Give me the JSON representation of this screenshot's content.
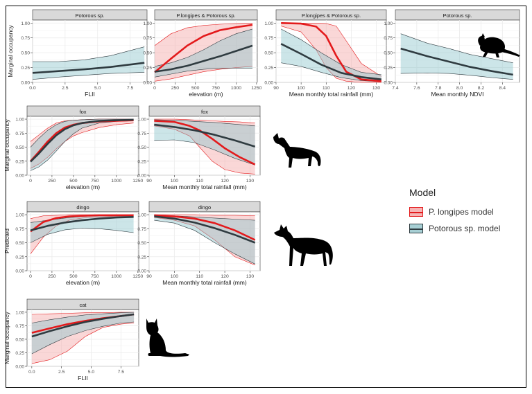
{
  "colors": {
    "p_longipes": "#e31a1c",
    "p_longipes_fill": "#f4a6a6",
    "potorous": "#2f3b40",
    "potorous_fill": "#8fc6cc",
    "strip_bg": "#d9d9d9",
    "panel_bg": "#ffffff",
    "grid": "#ebebeb"
  },
  "legend": {
    "title": "Model",
    "items": [
      {
        "label": "P. longipes model",
        "color": "#e31a1c"
      },
      {
        "label": "Potorous sp. model",
        "color": "#2f3b40"
      }
    ]
  },
  "row_ylabels": [
    "Marginal occupancy",
    "Marginal occupancy",
    "Predicted",
    "Marginal occupancy"
  ],
  "silhouettes": [
    "potoroo-icon",
    "fox-icon",
    "dingo-icon",
    "cat-icon"
  ],
  "chart_data": [
    {
      "type": "line",
      "strip": "Potorous sp.",
      "xlabel": "FLII",
      "xlim": [
        0,
        8.8
      ],
      "ylim": [
        0,
        1.05
      ],
      "xticks": [
        0,
        2.5,
        5,
        7.5
      ],
      "xtick_labels": [
        "0.0",
        "2.5",
        "5.0",
        "7.5"
      ],
      "yticks": [
        0,
        0.25,
        0.5,
        0.75,
        1
      ],
      "ytick_labels": [
        "0.00",
        "0.25",
        "0.50",
        "0.75",
        "1.00"
      ],
      "series": [
        {
          "model": "potorous",
          "x": [
            0,
            2,
            4,
            6,
            8.6
          ],
          "y": [
            0.16,
            0.19,
            0.22,
            0.26,
            0.33
          ],
          "lo": [
            0.05,
            0.09,
            0.12,
            0.15,
            0.17
          ],
          "hi": [
            0.35,
            0.35,
            0.38,
            0.45,
            0.6
          ]
        }
      ]
    },
    {
      "type": "line",
      "strip": "P.longipes & Potorous sp.",
      "xlabel": "elevation (m)",
      "xlim": [
        0,
        1260
      ],
      "ylim": [
        0,
        1.05
      ],
      "xticks": [
        0,
        250,
        500,
        750,
        1000,
        1250
      ],
      "xtick_labels": [
        "0",
        "250",
        "500",
        "750",
        "1000",
        "1250"
      ],
      "yticks": [
        0,
        0.25,
        0.5,
        0.75,
        1
      ],
      "ytick_labels": [
        "0.00",
        "0.25",
        "0.50",
        "0.75",
        "1.00"
      ],
      "series": [
        {
          "model": "p_longipes",
          "x": [
            0,
            200,
            400,
            600,
            800,
            1000,
            1200
          ],
          "y": [
            0.17,
            0.4,
            0.62,
            0.78,
            0.88,
            0.93,
            0.97
          ],
          "lo": [
            0.02,
            0.06,
            0.12,
            0.18,
            0.22,
            0.25,
            0.27
          ],
          "hi": [
            0.62,
            0.82,
            0.92,
            0.96,
            0.98,
            0.99,
            1.0
          ]
        },
        {
          "model": "potorous",
          "x": [
            0,
            200,
            400,
            600,
            800,
            1000,
            1200
          ],
          "y": [
            0.18,
            0.22,
            0.28,
            0.36,
            0.44,
            0.53,
            0.62
          ],
          "lo": [
            0.09,
            0.14,
            0.19,
            0.22,
            0.24,
            0.24,
            0.24
          ],
          "hi": [
            0.27,
            0.33,
            0.42,
            0.55,
            0.7,
            0.82,
            0.9
          ]
        }
      ]
    },
    {
      "type": "line",
      "strip": "P.longipes & Potorous sp.",
      "xlabel": "Mean monthly total rainfall (mm)",
      "xlim": [
        90,
        134
      ],
      "ylim": [
        0,
        1.05
      ],
      "xticks": [
        90,
        100,
        110,
        120,
        130
      ],
      "xtick_labels": [
        "90",
        "100",
        "110",
        "120",
        "130"
      ],
      "yticks": [
        0,
        0.25,
        0.5,
        0.75,
        1
      ],
      "ytick_labels": [
        "0.00",
        "0.25",
        "0.50",
        "0.75",
        "1.00"
      ],
      "series": [
        {
          "model": "p_longipes",
          "x": [
            92,
            100,
            106,
            110,
            114,
            118,
            124,
            132
          ],
          "y": [
            1.0,
            0.99,
            0.94,
            0.78,
            0.45,
            0.18,
            0.05,
            0.02
          ],
          "lo": [
            0.95,
            0.85,
            0.55,
            0.25,
            0.07,
            0.02,
            0.0,
            0.0
          ],
          "hi": [
            1.0,
            1.0,
            1.0,
            0.99,
            0.95,
            0.7,
            0.32,
            0.1
          ]
        },
        {
          "model": "potorous",
          "x": [
            92,
            100,
            108,
            116,
            124,
            132
          ],
          "y": [
            0.65,
            0.48,
            0.3,
            0.16,
            0.09,
            0.05
          ],
          "lo": [
            0.33,
            0.27,
            0.17,
            0.08,
            0.03,
            0.01
          ],
          "hi": [
            0.9,
            0.72,
            0.5,
            0.3,
            0.17,
            0.13
          ]
        }
      ]
    },
    {
      "type": "line",
      "strip": "Potorous sp.",
      "xlabel": "Mean monthly NDVI",
      "xlim": [
        7.4,
        8.56
      ],
      "ylim": [
        0,
        1.05
      ],
      "xticks": [
        7.4,
        7.6,
        7.8,
        8.0,
        8.2,
        8.4
      ],
      "xtick_labels": [
        "7.4",
        "7.6",
        "7.8",
        "8.0",
        "8.2",
        "8.4"
      ],
      "yticks": [
        0,
        0.25,
        0.5,
        0.75,
        1
      ],
      "ytick_labels": [
        "0.00",
        "0.25",
        "0.50",
        "0.75",
        "1.00"
      ],
      "series": [
        {
          "model": "potorous",
          "x": [
            7.45,
            7.7,
            7.9,
            8.1,
            8.3,
            8.5
          ],
          "y": [
            0.57,
            0.44,
            0.35,
            0.26,
            0.19,
            0.13
          ],
          "lo": [
            0.15,
            0.16,
            0.15,
            0.12,
            0.08,
            0.05
          ],
          "hi": [
            0.82,
            0.66,
            0.57,
            0.47,
            0.4,
            0.33
          ]
        }
      ]
    },
    {
      "type": "line",
      "strip": "fox",
      "xlabel": "elevation (m)",
      "xlim": [
        -40,
        1260
      ],
      "ylim": [
        0,
        1.05
      ],
      "xticks": [
        0,
        250,
        500,
        750,
        1000,
        1250
      ],
      "xtick_labels": [
        "0",
        "250",
        "500",
        "750",
        "1000",
        "1250"
      ],
      "yticks": [
        0,
        0.25,
        0.5,
        0.75,
        1
      ],
      "ytick_labels": [
        "0.00",
        "0.25",
        "0.50",
        "0.75",
        "1.00"
      ],
      "series": [
        {
          "model": "p_longipes",
          "x": [
            0,
            100,
            200,
            300,
            400,
            500,
            600,
            800,
            1000,
            1200
          ],
          "y": [
            0.25,
            0.42,
            0.6,
            0.75,
            0.85,
            0.9,
            0.93,
            0.96,
            0.97,
            0.98
          ],
          "lo": [
            0.12,
            0.2,
            0.32,
            0.47,
            0.6,
            0.7,
            0.76,
            0.85,
            0.9,
            0.93
          ],
          "hi": [
            0.6,
            0.72,
            0.84,
            0.93,
            0.97,
            0.98,
            0.99,
            1.0,
            1.0,
            1.0
          ]
        },
        {
          "model": "potorous",
          "x": [
            0,
            100,
            200,
            300,
            400,
            500,
            600,
            800,
            1000,
            1200
          ],
          "y": [
            0.24,
            0.39,
            0.56,
            0.71,
            0.82,
            0.89,
            0.93,
            0.97,
            0.98,
            0.99
          ],
          "lo": [
            0.08,
            0.15,
            0.27,
            0.43,
            0.6,
            0.74,
            0.84,
            0.93,
            0.96,
            0.97
          ],
          "hi": [
            0.5,
            0.66,
            0.8,
            0.9,
            0.96,
            0.98,
            0.99,
            1.0,
            1.0,
            1.0
          ]
        }
      ]
    },
    {
      "type": "line",
      "strip": "fox",
      "xlabel": "Mean monthly total rainfall (mm)",
      "xlim": [
        90,
        134
      ],
      "ylim": [
        0,
        1.05
      ],
      "xticks": [
        90,
        100,
        110,
        120,
        130
      ],
      "xtick_labels": [
        "90",
        "100",
        "110",
        "120",
        "130"
      ],
      "yticks": [
        0,
        0.25,
        0.5,
        0.75,
        1
      ],
      "ytick_labels": [
        "0.00",
        "0.25",
        "0.50",
        "0.75",
        "1.00"
      ],
      "series": [
        {
          "model": "p_longipes",
          "x": [
            92,
            100,
            106,
            110,
            115,
            120,
            126,
            132
          ],
          "y": [
            0.97,
            0.95,
            0.88,
            0.8,
            0.65,
            0.48,
            0.32,
            0.19
          ],
          "lo": [
            0.88,
            0.82,
            0.7,
            0.5,
            0.25,
            0.1,
            0.04,
            0.02
          ],
          "hi": [
            1.0,
            1.0,
            0.99,
            0.98,
            0.97,
            0.96,
            0.95,
            0.93
          ]
        },
        {
          "model": "potorous",
          "x": [
            92,
            100,
            108,
            116,
            124,
            132
          ],
          "y": [
            0.9,
            0.86,
            0.8,
            0.72,
            0.62,
            0.51
          ],
          "lo": [
            0.62,
            0.63,
            0.58,
            0.45,
            0.3,
            0.18
          ],
          "hi": [
            0.99,
            0.98,
            0.96,
            0.94,
            0.91,
            0.88
          ]
        }
      ]
    },
    {
      "type": "line",
      "strip": "dingo",
      "xlabel": "elevation (m)",
      "xlim": [
        -40,
        1260
      ],
      "ylim": [
        0,
        1.05
      ],
      "xticks": [
        0,
        250,
        500,
        750,
        1000,
        1250
      ],
      "xtick_labels": [
        "0",
        "250",
        "500",
        "750",
        "1000",
        "1250"
      ],
      "yticks": [
        0,
        0.25,
        0.5,
        0.75,
        1
      ],
      "ytick_labels": [
        "0.00",
        "0.25",
        "0.50",
        "0.75",
        "1.00"
      ],
      "series": [
        {
          "model": "p_longipes",
          "x": [
            0,
            150,
            300,
            450,
            600,
            800,
            1000,
            1200
          ],
          "y": [
            0.7,
            0.87,
            0.94,
            0.97,
            0.98,
            0.99,
            0.99,
            0.99
          ],
          "lo": [
            0.3,
            0.6,
            0.8,
            0.9,
            0.94,
            0.96,
            0.97,
            0.97
          ],
          "hi": [
            0.93,
            0.98,
            0.99,
            1.0,
            1.0,
            1.0,
            1.0,
            1.0
          ]
        },
        {
          "model": "potorous",
          "x": [
            0,
            200,
            400,
            600,
            800,
            1000,
            1200
          ],
          "y": [
            0.72,
            0.8,
            0.86,
            0.9,
            0.93,
            0.95,
            0.96
          ],
          "lo": [
            0.5,
            0.65,
            0.73,
            0.76,
            0.75,
            0.72,
            0.68
          ],
          "hi": [
            0.86,
            0.9,
            0.94,
            0.97,
            0.98,
            0.99,
            1.0
          ]
        }
      ]
    },
    {
      "type": "line",
      "strip": "dingo",
      "xlabel": "Mean monthly total rainfall (mm)",
      "xlim": [
        90,
        134
      ],
      "ylim": [
        0,
        1.05
      ],
      "xticks": [
        90,
        100,
        110,
        120,
        130
      ],
      "xtick_labels": [
        "90",
        "100",
        "110",
        "120",
        "130"
      ],
      "yticks": [
        0,
        0.25,
        0.5,
        0.75,
        1
      ],
      "ytick_labels": [
        "0.00",
        "0.25",
        "0.50",
        "0.75",
        "1.00"
      ],
      "series": [
        {
          "model": "p_longipes",
          "x": [
            92,
            100,
            108,
            116,
            124,
            132
          ],
          "y": [
            0.99,
            0.97,
            0.93,
            0.85,
            0.72,
            0.55
          ],
          "lo": [
            0.95,
            0.9,
            0.8,
            0.55,
            0.25,
            0.1
          ],
          "hi": [
            1.0,
            1.0,
            1.0,
            0.99,
            0.99,
            0.98
          ]
        },
        {
          "model": "potorous",
          "x": [
            92,
            100,
            108,
            116,
            124,
            132
          ],
          "y": [
            0.97,
            0.93,
            0.86,
            0.76,
            0.64,
            0.5
          ],
          "lo": [
            0.9,
            0.85,
            0.72,
            0.5,
            0.3,
            0.12
          ],
          "hi": [
            0.99,
            0.98,
            0.96,
            0.94,
            0.92,
            0.9
          ]
        }
      ]
    },
    {
      "type": "line",
      "strip": "cat",
      "xlabel": "FLII",
      "xlim": [
        -0.4,
        9.0
      ],
      "ylim": [
        0,
        1.05
      ],
      "xticks": [
        0,
        2.5,
        5,
        7.5
      ],
      "xtick_labels": [
        "0.0",
        "2.5",
        "5.0",
        "7.5"
      ],
      "yticks": [
        0,
        0.25,
        0.5,
        0.75,
        1
      ],
      "ytick_labels": [
        "0.00",
        "0.25",
        "0.50",
        "0.75",
        "1.00"
      ],
      "series": [
        {
          "model": "p_longipes",
          "x": [
            0,
            1.5,
            3,
            4.5,
            6,
            7.5,
            8.6
          ],
          "y": [
            0.62,
            0.7,
            0.78,
            0.84,
            0.89,
            0.93,
            0.96
          ],
          "lo": [
            0.05,
            0.12,
            0.28,
            0.55,
            0.72,
            0.78,
            0.8
          ],
          "hi": [
            0.96,
            0.97,
            0.98,
            0.99,
            0.99,
            1.0,
            1.0
          ]
        },
        {
          "model": "potorous",
          "x": [
            0,
            1.5,
            3,
            4.5,
            6,
            7.5,
            8.6
          ],
          "y": [
            0.55,
            0.65,
            0.74,
            0.82,
            0.88,
            0.93,
            0.96
          ],
          "lo": [
            0.23,
            0.4,
            0.55,
            0.66,
            0.74,
            0.8,
            0.82
          ],
          "hi": [
            0.8,
            0.86,
            0.91,
            0.95,
            0.97,
            0.99,
            1.0
          ]
        }
      ]
    }
  ]
}
